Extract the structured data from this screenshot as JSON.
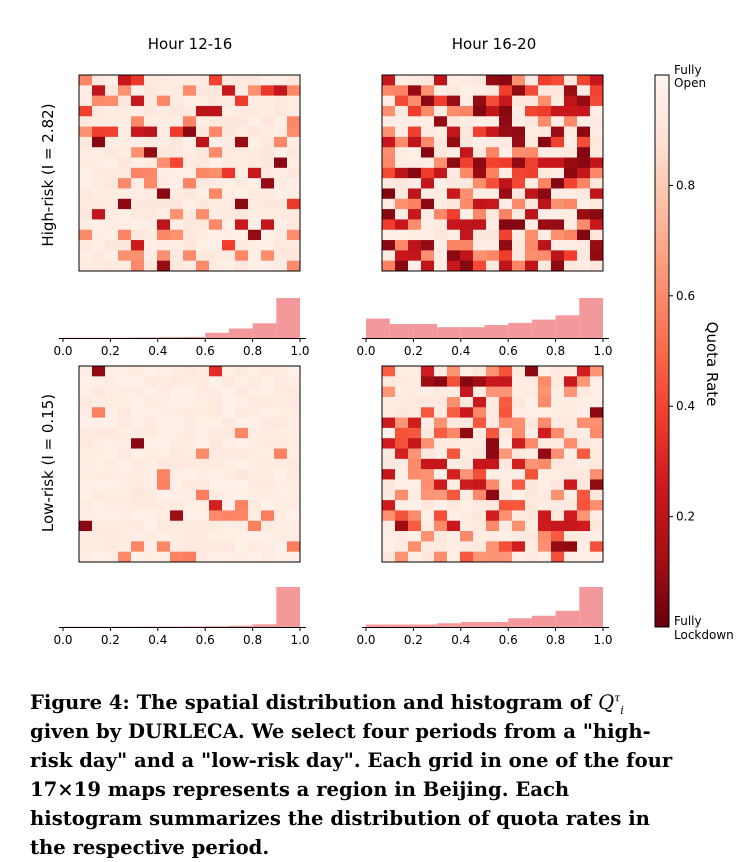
{
  "chart_data": {
    "type": "heatmap",
    "column_titles": [
      "Hour 12-16",
      "Hour 16-20"
    ],
    "row_titles": [
      "High-risk (I = 2.82)",
      "Low-risk (I = 0.15)"
    ],
    "grid": {
      "cols": 17,
      "rows": 19
    },
    "colormap": {
      "name": "Reds (reversed)",
      "low_color": "#67000d",
      "high_color": "#fff5f0",
      "range": [
        0.0,
        1.0
      ]
    },
    "colorbar": {
      "label": "Quota Rate",
      "ticks": [
        "0.2",
        "0.4",
        "0.6",
        "0.8"
      ],
      "tick_values": [
        0.2,
        0.4,
        0.6,
        0.8
      ],
      "top_label_line1": "Fully",
      "top_label_line2": "Open",
      "bottom_label_line1": "Fully",
      "bottom_label_line2": "Lockdown"
    },
    "histogram": {
      "x_ticks": [
        "0.0",
        "0.2",
        "0.4",
        "0.6",
        "0.8",
        "1.0"
      ],
      "x_tick_values": [
        0.0,
        0.2,
        0.4,
        0.6,
        0.8,
        1.0
      ],
      "bin_edges": [
        0.0,
        0.1,
        0.2,
        0.3,
        0.4,
        0.5,
        0.6,
        0.7,
        0.8,
        0.9,
        1.0
      ],
      "bar_color": "#f4999b"
    },
    "panels": [
      {
        "row": 0,
        "col": 0,
        "seed": 11,
        "dist": [
          [
            0.03,
            0.09
          ],
          [
            0.06,
            0.22
          ],
          [
            0.08,
            0.38
          ],
          [
            0.13,
            0.6
          ],
          [
            0.7,
            0.94
          ]
        ],
        "hist": [
          0.003,
          0.003,
          0.003,
          0.005,
          0.008,
          0.01,
          0.05,
          0.09,
          0.14,
          0.38
        ]
      },
      {
        "row": 0,
        "col": 1,
        "seed": 29,
        "dist": [
          [
            0.17,
            0.08
          ],
          [
            0.15,
            0.22
          ],
          [
            0.13,
            0.4
          ],
          [
            0.13,
            0.6
          ],
          [
            0.42,
            0.94
          ]
        ],
        "hist": [
          0.18,
          0.13,
          0.13,
          0.1,
          0.1,
          0.12,
          0.14,
          0.17,
          0.21,
          0.37
        ]
      },
      {
        "row": 1,
        "col": 0,
        "seed": 47,
        "dist": [
          [
            0.005,
            0.09
          ],
          [
            0.015,
            0.3
          ],
          [
            0.09,
            0.58
          ],
          [
            0.89,
            0.95
          ]
        ],
        "hist": [
          0.002,
          0.002,
          0.002,
          0.003,
          0.003,
          0.004,
          0.006,
          0.01,
          0.02,
          0.3
        ]
      },
      {
        "row": 1,
        "col": 1,
        "seed": 83,
        "dist": [
          [
            0.05,
            0.09
          ],
          [
            0.1,
            0.25
          ],
          [
            0.13,
            0.45
          ],
          [
            0.18,
            0.62
          ],
          [
            0.54,
            0.94
          ]
        ],
        "hist": [
          0.02,
          0.02,
          0.02,
          0.03,
          0.04,
          0.04,
          0.07,
          0.09,
          0.13,
          0.32
        ]
      }
    ]
  },
  "caption": {
    "lead": "Figure 4: The spatial distribution and histogram of ",
    "symbol": "Q",
    "superscript": "τ",
    "subscript": "i",
    "rest": " given by DURLECA. We select four periods from a \"high-risk day\" and a \"low-risk day\". Each grid in one of the four 17×19 maps represents a region in Beijing. Each histogram summarizes the distribution of quota rates in the respective period."
  }
}
